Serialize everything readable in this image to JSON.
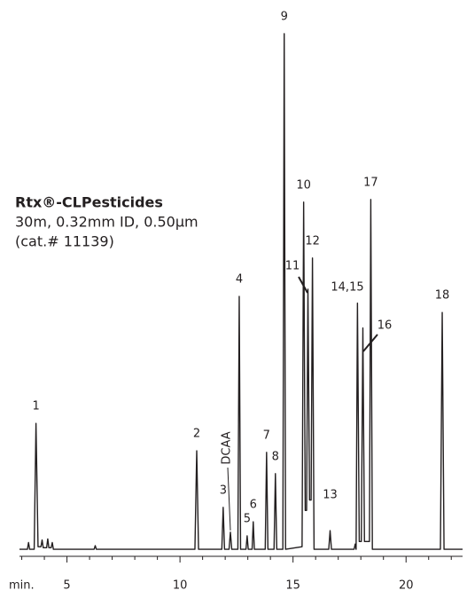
{
  "chart_data": {
    "type": "line",
    "text_lines": [
      "Rtx®-CLPesticides",
      "30m, 0.32mm ID, 0.50µm",
      "(cat.# 11139)"
    ],
    "x_label": "min.",
    "xlim": [
      2.9,
      22.5
    ],
    "ylim": [
      0,
      100
    ],
    "xticks": [
      5,
      10,
      15,
      20
    ],
    "xminorticks": [
      3,
      4,
      6,
      7,
      8,
      9,
      11,
      12,
      13,
      14,
      16,
      17,
      18,
      19,
      21,
      22
    ],
    "series": [
      {
        "color": "#231f20",
        "x": [
          2.9,
          3.25,
          3.3,
          3.35,
          3.55,
          3.63,
          3.72,
          3.85,
          3.9,
          3.95,
          4.1,
          4.15,
          4.2,
          4.3,
          4.35,
          4.4,
          6.2,
          6.25,
          6.3,
          10.66,
          10.74,
          10.82,
          11.85,
          11.91,
          11.97,
          12.17,
          12.23,
          12.29,
          12.56,
          12.62,
          12.68,
          12.92,
          12.97,
          13.02,
          13.19,
          13.24,
          13.29,
          13.77,
          13.83,
          13.89,
          14.16,
          14.22,
          14.28,
          14.55,
          14.61,
          14.67,
          15.4,
          15.47,
          15.54,
          15.6,
          15.66,
          15.73,
          15.8,
          15.86,
          15.93,
          16.58,
          16.64,
          16.7,
          17.7,
          17.75,
          17.79,
          17.85,
          17.93,
          18.02,
          18.09,
          18.16,
          18.38,
          18.44,
          18.51,
          21.52,
          21.6,
          21.68,
          22.5
        ],
        "values": [
          0.5,
          0.5,
          1.8,
          0.5,
          0.5,
          24.8,
          1,
          1,
          2.3,
          0.8,
          0.8,
          2.5,
          0.8,
          0.8,
          1.8,
          0.5,
          0.5,
          1.2,
          0.5,
          0.5,
          19.5,
          0.5,
          0.5,
          8.6,
          0.5,
          0.5,
          3.8,
          0.5,
          0.5,
          49.3,
          0.5,
          0.5,
          3.1,
          0.5,
          0.5,
          5.8,
          0.5,
          0.5,
          19.2,
          0.5,
          0.5,
          15.1,
          0.5,
          0.5,
          100,
          0.5,
          1,
          67.5,
          8,
          8,
          50.7,
          10,
          10,
          56.7,
          0.5,
          0.5,
          4.1,
          0.5,
          0.5,
          1.5,
          0.5,
          48,
          2,
          2,
          43.2,
          2,
          2,
          68,
          0.5,
          0.5,
          46.2,
          0.5,
          0.5
        ]
      }
    ],
    "annotations": [
      {
        "text": "1",
        "x": 3.63,
        "y": 24.8
      },
      {
        "text": "2",
        "x": 10.74,
        "y": 19.5
      },
      {
        "text": "3",
        "x": 11.91,
        "y": 8.6
      },
      {
        "text": "DCAA",
        "x": 12.23,
        "y": 3.8
      },
      {
        "text": "4",
        "x": 12.62,
        "y": 49.3
      },
      {
        "text": "5",
        "x": 12.97,
        "y": 3.1
      },
      {
        "text": "6",
        "x": 13.24,
        "y": 5.8
      },
      {
        "text": "7",
        "x": 13.83,
        "y": 19.2
      },
      {
        "text": "8",
        "x": 14.22,
        "y": 15.1
      },
      {
        "text": "9",
        "x": 14.61,
        "y": 100
      },
      {
        "text": "10",
        "x": 15.47,
        "y": 67.5
      },
      {
        "text": "11",
        "x": 15.66,
        "y": 50.7
      },
      {
        "text": "12",
        "x": 15.86,
        "y": 56.7
      },
      {
        "text": "13",
        "x": 16.64,
        "y": 4.1
      },
      {
        "text": "14,15",
        "x": 17.85,
        "y": 48
      },
      {
        "text": "16",
        "x": 18.09,
        "y": 43.2
      },
      {
        "text": "17",
        "x": 18.44,
        "y": 68
      },
      {
        "text": "18",
        "x": 21.6,
        "y": 46.2
      }
    ]
  }
}
